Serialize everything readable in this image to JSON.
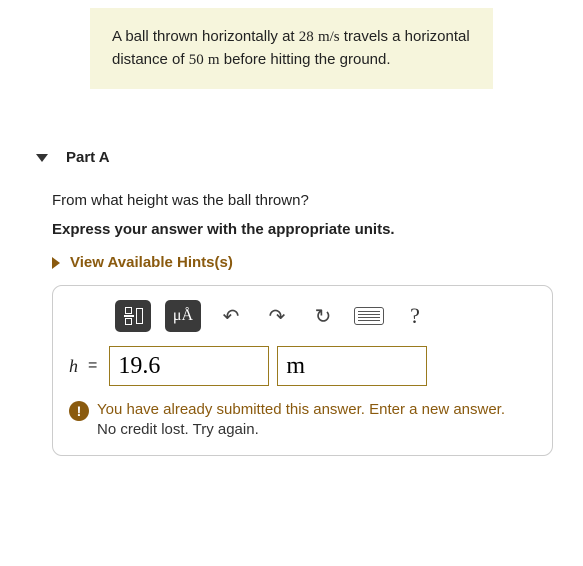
{
  "problem": {
    "pre": "A ball thrown horizontally at ",
    "v_val": "28",
    "v_unit": "m/s",
    "mid": " travels a horizontal distance of ",
    "d_val": "50",
    "d_unit": "m",
    "post": " before hitting the ground."
  },
  "part": {
    "label": "Part A",
    "question": "From what height was the ball thrown?",
    "instruction": "Express your answer with the appropriate units.",
    "hints_label": "View Available Hints(s)"
  },
  "toolbar": {
    "mu_label": "μÅ",
    "help_label": "?"
  },
  "answer": {
    "var": "h",
    "eq": "=",
    "value": "19.6",
    "unit": "m"
  },
  "feedback": {
    "line1": "You have already submitted this answer. Enter a new answer.",
    "line2": "No credit lost. Try again."
  },
  "colors": {
    "accent": "#8a5a0e",
    "panel_bg": "#f6f5dc",
    "input_border": "#9a7a1e"
  }
}
